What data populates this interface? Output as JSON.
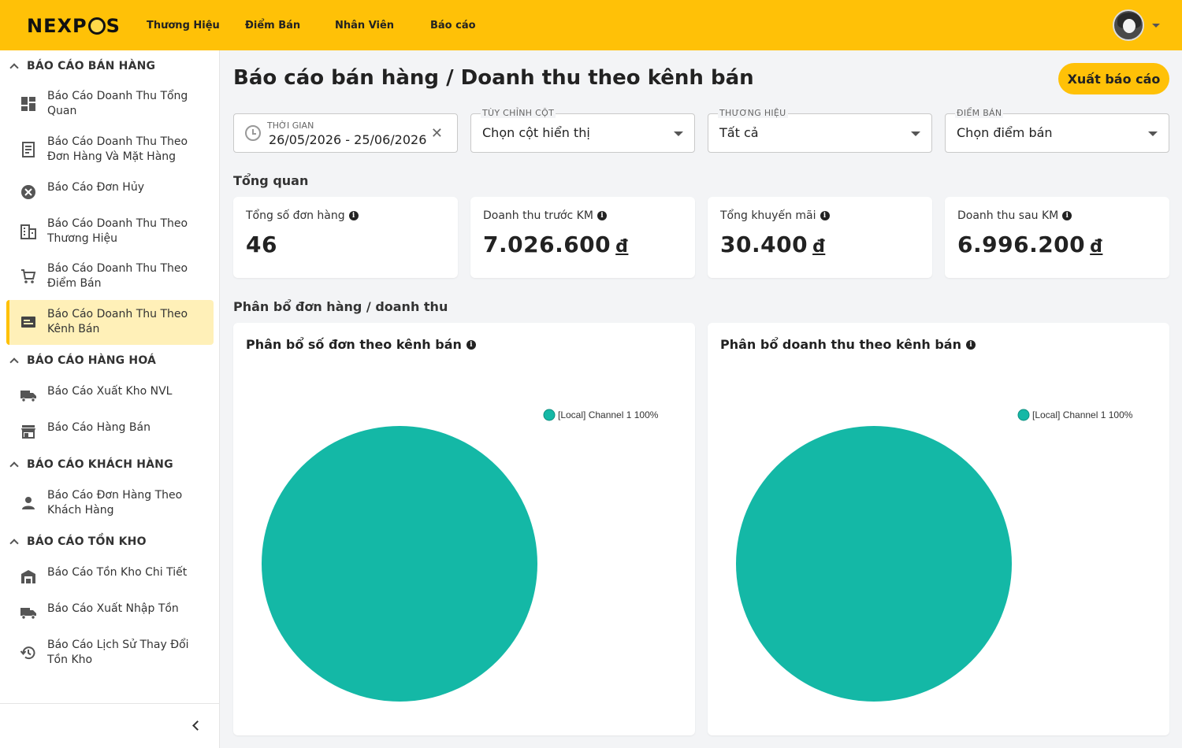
{
  "header": {
    "logo": {
      "pre": "NEXP",
      "post": "S"
    },
    "nav": [
      "Thương Hiệu",
      "Điểm Bán",
      "Nhân Viên",
      "Báo cáo"
    ]
  },
  "sidebar": {
    "sections": [
      {
        "title": "BÁO CÁO BÁN HÀNG"
      },
      {
        "title": "BÁO CÁO HÀNG HOÁ"
      },
      {
        "title": "BÁO CÁO KHÁCH HÀNG"
      },
      {
        "title": "BÁO CÁO TỒN KHO"
      }
    ],
    "items": [
      {
        "line1": "Báo Cáo Doanh Thu Tổng",
        "line2": "Quan",
        "icon": "dashboard-icon"
      },
      {
        "line1": "Báo Cáo Doanh Thu Theo",
        "line2": "Đơn Hàng Và Mặt Hàng",
        "icon": "receipt-icon"
      },
      {
        "line1": "Báo Cáo Đơn Hủy",
        "line2": "",
        "icon": "cancel-icon"
      },
      {
        "line1": "Báo Cáo Doanh Thu Theo",
        "line2": "Thương Hiệu",
        "icon": "building-icon"
      },
      {
        "line1": "Báo Cáo Doanh Thu Theo",
        "line2": "Điểm Bán",
        "icon": "cart-icon"
      },
      {
        "line1": "Báo Cáo Doanh Thu Theo",
        "line2": "Kênh Bán",
        "icon": "channel-icon"
      },
      {
        "line1": "Báo Cáo Xuất Kho NVL",
        "line2": "",
        "icon": "truck-icon"
      },
      {
        "line1": "Báo Cáo Hàng Bán",
        "line2": "",
        "icon": "store-icon"
      },
      {
        "line1": "Báo Cáo Đơn Hàng Theo",
        "line2": "Khách Hàng",
        "icon": "person-icon"
      },
      {
        "line1": "Báo Cáo Tồn Kho Chi Tiết",
        "line2": "",
        "icon": "warehouse-icon"
      },
      {
        "line1": "Báo Cáo Xuất Nhập Tồn",
        "line2": "",
        "icon": "truck-icon"
      },
      {
        "line1": "Báo Cáo Lịch Sử Thay Đổi",
        "line2": "Tồn Kho",
        "icon": "history-icon"
      }
    ]
  },
  "main": {
    "title": "Báo cáo bán hàng / Doanh thu theo kênh bán",
    "export_label": "Xuất báo cáo",
    "filters": {
      "date": {
        "label": "THỜI GIAN",
        "value": "26/05/2026 - 25/06/2026"
      },
      "columns": {
        "label": "TÙY CHỈNH CỘT",
        "value": "Chọn cột hiển thị"
      },
      "brand": {
        "label": "THƯƠNG HIỆU",
        "value": "Tất cả"
      },
      "store": {
        "label": "ĐIỂM BÁN",
        "value": "Chọn điểm bán"
      }
    },
    "overview_title": "Tổng quan",
    "stats": [
      {
        "label": "Tổng số đơn hàng",
        "value": "46",
        "currency": ""
      },
      {
        "label": "Doanh thu trước KM",
        "value": "7.026.600",
        "currency": "đ"
      },
      {
        "label": "Tổng khuyến mãi",
        "value": "30.400",
        "currency": "đ"
      },
      {
        "label": "Doanh thu sau KM",
        "value": "6.996.200",
        "currency": "đ"
      }
    ],
    "distribution_title": "Phân bổ đơn hàng / doanh thu",
    "info_glyph": "i"
  },
  "chart_data": [
    {
      "type": "pie",
      "title": "Phân bổ số đơn theo kênh bán",
      "categories": [
        "[Local] Channel 1"
      ],
      "values": [
        100
      ],
      "legend_labels": [
        "[Local] Channel 1 100%"
      ],
      "colors": [
        "#14b8a6"
      ],
      "legend": "top-right"
    },
    {
      "type": "pie",
      "title": "Phân bổ doanh thu theo kênh bán",
      "categories": [
        "[Local] Channel 1"
      ],
      "values": [
        100
      ],
      "legend_labels": [
        "[Local] Channel 1 100%"
      ],
      "colors": [
        "#14b8a6"
      ],
      "legend": "top-right"
    }
  ]
}
